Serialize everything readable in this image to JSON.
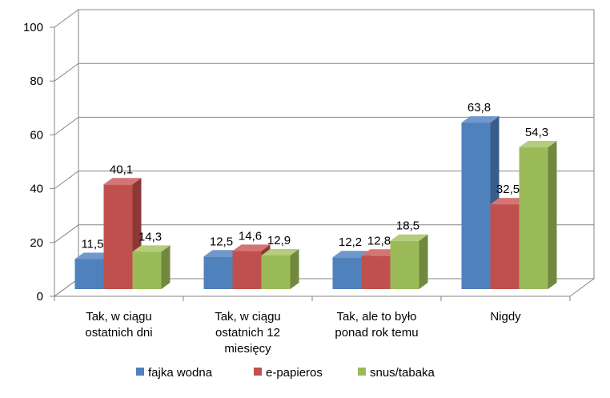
{
  "chart_data": {
    "type": "bar",
    "categories": [
      [
        "Tak, w ciągu",
        "ostatnich dni"
      ],
      [
        "Tak, w ciągu",
        "ostatnich 12",
        "miesięcy"
      ],
      [
        "Tak, ale to było",
        "ponad rok temu"
      ],
      [
        "Nigdy"
      ]
    ],
    "series": [
      {
        "name": "fajka wodna",
        "values": [
          11.5,
          12.5,
          12.2,
          63.8
        ],
        "labels": [
          "11,5",
          "12,5",
          "12,2",
          "63,8"
        ],
        "color": "#4f81bd",
        "side": "#385d8a",
        "top": "#7298cb"
      },
      {
        "name": "e-papieros",
        "values": [
          40.1,
          14.6,
          12.8,
          32.5
        ],
        "labels": [
          "40,1",
          "14,6",
          "12,8",
          "32,5"
        ],
        "color": "#c0504d",
        "side": "#8c3836",
        "top": "#d47573"
      },
      {
        "name": "snus/tabaka",
        "values": [
          14.3,
          12.9,
          18.5,
          54.3
        ],
        "labels": [
          "14,3",
          "12,9",
          "18,5",
          "54,3"
        ],
        "color": "#9bbb59",
        "side": "#71893f",
        "top": "#b3cd7d"
      }
    ],
    "yticks": [
      "0",
      "20",
      "40",
      "60",
      "80",
      "100"
    ],
    "ylim": [
      0,
      100
    ],
    "grid": true,
    "legend": "bottom",
    "three_d": true
  }
}
